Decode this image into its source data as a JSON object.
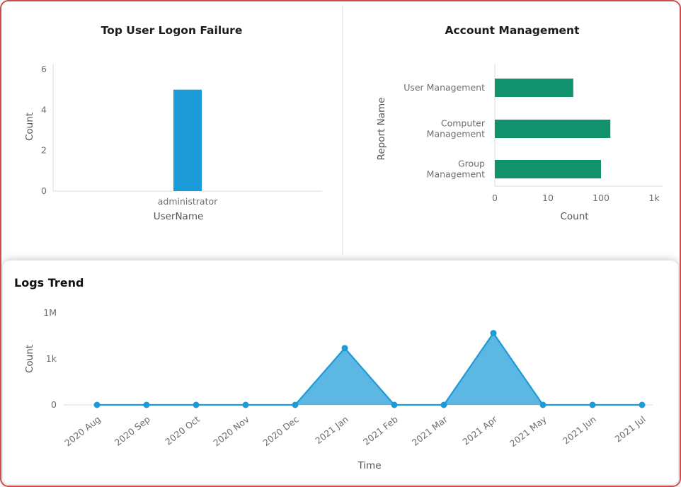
{
  "theme": {
    "background": "#ffffff",
    "frame_border_color": "#c94e4e",
    "axis_line_color": "#dcdcdc",
    "tick_text_color": "#6d6d6d",
    "axis_title_color": "#555555",
    "title_color": "#1b1b1b",
    "bar_blue": "#1d9bd8",
    "bar_teal": "#12916d"
  },
  "chart_data": [
    {
      "type": "bar",
      "title": "Top User Logon Failure",
      "xlabel": "UserName",
      "ylabel": "Count",
      "categories": [
        "administrator"
      ],
      "values": [
        5
      ],
      "yticks": [
        0,
        2,
        4,
        6
      ],
      "ylim": [
        0,
        6
      ],
      "grid": false,
      "color": "#1d9bd8"
    },
    {
      "type": "bar-horizontal",
      "title": "Account Management",
      "xlabel": "Count",
      "ylabel": "Report Name",
      "categories": [
        "User Management",
        "Computer Management",
        "Group Management"
      ],
      "category_label_lines": [
        [
          "User Management"
        ],
        [
          "Computer",
          "Management"
        ],
        [
          "Group",
          "Management"
        ]
      ],
      "values": [
        30,
        150,
        100
      ],
      "xticks": [
        "0",
        "10",
        "100",
        "1k"
      ],
      "xtick_values": [
        0,
        10,
        100,
        1000
      ],
      "x_scale": "log",
      "grid": false,
      "color": "#12916d"
    },
    {
      "type": "area",
      "title": "Logs Trend",
      "xlabel": "Time",
      "ylabel": "Count",
      "x": [
        "2020 Aug",
        "2020 Sep",
        "2020 Oct",
        "2020 Nov",
        "2020 Dec",
        "2021 Jan",
        "2021 Feb",
        "2021 Mar",
        "2021 Apr",
        "2021 May",
        "2021 Jun",
        "2021 Jul"
      ],
      "values": [
        0,
        0,
        0,
        0,
        0,
        5000,
        0,
        0,
        48000,
        0,
        0,
        0
      ],
      "yticks": [
        "0",
        "1k",
        "1M"
      ],
      "ytick_values": [
        0,
        1000,
        1000000
      ],
      "y_scale": "symlog",
      "grid": false,
      "color": "#1d9bd8",
      "fill_opacity": 0.72
    }
  ]
}
